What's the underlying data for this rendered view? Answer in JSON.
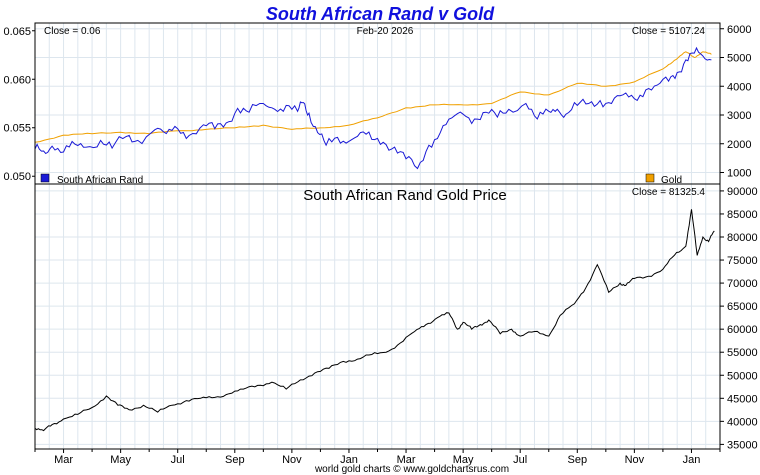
{
  "title": "South African Rand v Gold",
  "footer": "world gold charts © www.goldchartsrus.com",
  "colors": {
    "title": "#1010dd",
    "rand_line": "#1a1ad6",
    "gold_line": "#f0a000",
    "price_line": "#000000",
    "grid": "#dde6ee",
    "frame": "#000000",
    "text": "#000000"
  },
  "chart_data": [
    {
      "type": "line",
      "title": "South African Rand v Gold",
      "top_left_label": "Close = 0.06",
      "date_label": "Feb-20  2026",
      "top_right_label": "Close = 5107.24",
      "left_axis": {
        "ticks": [
          0.05,
          0.055,
          0.06,
          0.065
        ],
        "tick_labels": [
          "0.050",
          "0.055",
          "0.060",
          "0.065"
        ],
        "range": [
          0.0492,
          0.0658
        ]
      },
      "right_axis": {
        "ticks": [
          1000,
          2000,
          3000,
          4000,
          5000,
          6000
        ],
        "tick_labels": [
          "1000",
          "2000",
          "3000",
          "4000",
          "5000",
          "6000"
        ],
        "range": [
          600,
          6200
        ]
      },
      "series": [
        {
          "name": "South African Rand",
          "axis": "left",
          "x": [
            0,
            0.3,
            0.6,
            1,
            1.4,
            1.8,
            2.3,
            2.7,
            3.2,
            3.6,
            4.2,
            4.6,
            5,
            5.4,
            5.9,
            6.3,
            6.7,
            7.1,
            7.5,
            8,
            8.4,
            8.8,
            9.2,
            9.4,
            9.6,
            9.9,
            10.2,
            10.6,
            11,
            11.4,
            11.8,
            12.2,
            12.6,
            13,
            13.4,
            13.8,
            14.2,
            14.6,
            15,
            15.4,
            15.8,
            16.2,
            16.6,
            17.2,
            17.6,
            18,
            18.3,
            18.6,
            19,
            19.4,
            19.8,
            20.2,
            20.6,
            21,
            21.4,
            21.8,
            22.2,
            22.5,
            22.8,
            23.1,
            23.4,
            23.7
          ],
          "values": [
            0.0528,
            0.0526,
            0.0531,
            0.0525,
            0.0533,
            0.053,
            0.0537,
            0.0529,
            0.0541,
            0.0537,
            0.0548,
            0.0544,
            0.0549,
            0.0542,
            0.0553,
            0.0549,
            0.0555,
            0.057,
            0.0566,
            0.0575,
            0.0569,
            0.0573,
            0.0567,
            0.0576,
            0.0565,
            0.0545,
            0.0532,
            0.054,
            0.0536,
            0.0545,
            0.0538,
            0.0535,
            0.053,
            0.0518,
            0.0508,
            0.0532,
            0.0545,
            0.056,
            0.0564,
            0.0559,
            0.0566,
            0.0561,
            0.0569,
            0.0575,
            0.0559,
            0.0567,
            0.0569,
            0.0564,
            0.0573,
            0.0575,
            0.0578,
            0.0575,
            0.0584,
            0.058,
            0.0589,
            0.0594,
            0.0598,
            0.0607,
            0.062,
            0.0627,
            0.0624,
            0.062
          ]
        },
        {
          "name": "Gold",
          "axis": "right",
          "x": [
            0,
            1,
            2,
            3,
            4,
            5,
            6,
            7,
            8,
            9,
            10,
            11,
            12,
            13,
            14,
            15,
            16,
            17,
            18,
            19,
            20,
            21,
            22,
            22.4,
            22.8,
            23.1,
            23.4,
            23.7
          ],
          "values": [
            2050,
            2300,
            2350,
            2400,
            2350,
            2450,
            2500,
            2550,
            2650,
            2500,
            2550,
            2650,
            2900,
            3250,
            3350,
            3350,
            3400,
            3800,
            3700,
            4100,
            4000,
            4150,
            4600,
            4900,
            5200,
            5000,
            5200,
            5107
          ]
        }
      ]
    },
    {
      "type": "line",
      "title": "South African Rand Gold Price",
      "top_right_label": "Close = 81325.4",
      "y_axis": {
        "ticks": [
          35000,
          40000,
          45000,
          50000,
          55000,
          60000,
          65000,
          70000,
          75000,
          80000,
          85000,
          90000
        ],
        "tick_labels": [
          "35000",
          "40000",
          "45000",
          "50000",
          "55000",
          "60000",
          "65000",
          "70000",
          "75000",
          "80000",
          "85000",
          "90000"
        ],
        "range": [
          34000,
          91500
        ]
      },
      "x_axis": {
        "tick_labels": [
          "Mar",
          "May",
          "Jul",
          "Sep",
          "Nov",
          "Jan",
          "Mar",
          "May",
          "Jul",
          "Sep",
          "Nov",
          "Jan"
        ],
        "tick_positions": [
          1,
          3,
          5,
          7,
          9,
          11,
          13,
          15,
          17,
          19,
          21,
          23
        ],
        "range": [
          0,
          24
        ]
      },
      "series": [
        {
          "name": "South African Rand Gold Price",
          "x": [
            0,
            0.3,
            0.6,
            1.0,
            1.5,
            2.0,
            2.5,
            2.9,
            3.3,
            3.8,
            4.3,
            4.8,
            5.3,
            5.8,
            6.3,
            6.8,
            7.3,
            7.8,
            8.3,
            8.8,
            9.3,
            9.8,
            10.3,
            10.8,
            11.3,
            11.8,
            12.3,
            12.8,
            13.3,
            13.7,
            14.1,
            14.5,
            14.8,
            15.0,
            15.3,
            15.6,
            15.9,
            16.3,
            16.7,
            17.0,
            17.5,
            18.0,
            18.4,
            18.9,
            19.3,
            19.7,
            20.1,
            20.5,
            20.7,
            21.0,
            21.5,
            22.0,
            22.4,
            22.8,
            23.0,
            23.2,
            23.4,
            23.6,
            23.8
          ],
          "values": [
            38500,
            38000,
            39300,
            40500,
            41500,
            43000,
            45500,
            43500,
            42500,
            43500,
            42000,
            43500,
            44500,
            45000,
            45200,
            46000,
            47000,
            47800,
            48500,
            47000,
            49000,
            50500,
            51500,
            53000,
            53500,
            54500,
            55000,
            57000,
            59500,
            61000,
            62500,
            63500,
            60000,
            61500,
            60000,
            61000,
            62000,
            59000,
            60000,
            58500,
            59500,
            58500,
            63000,
            65500,
            69000,
            74000,
            68000,
            70000,
            69500,
            71000,
            71500,
            73000,
            76000,
            78000,
            86000,
            76000,
            80000,
            79000,
            81325
          ]
        }
      ]
    }
  ]
}
